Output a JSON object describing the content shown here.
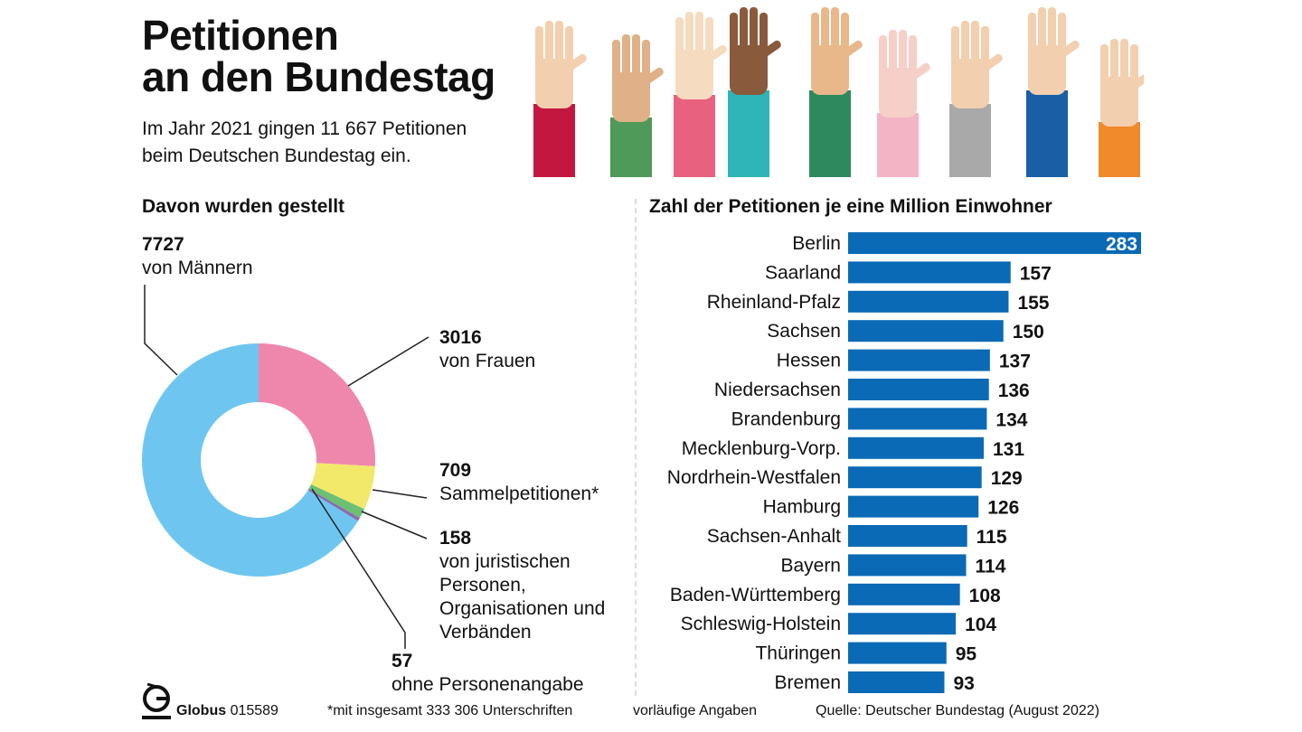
{
  "header": {
    "title_line1": "Petitionen",
    "title_line2": "an den Bundestag",
    "subtitle_line1": "Im Jahr 2021 gingen 11 667 Petitionen",
    "subtitle_line2": "beim Deutschen Bundestag ein."
  },
  "footer": {
    "brand": "Globus",
    "code": "015589",
    "footnote": "*mit insgesamt 333 306 Unterschriften",
    "note": "vorläufige Angaben",
    "source": "Quelle: Deutscher Bundestag (August 2022)"
  },
  "chart_data": [
    {
      "type": "pie",
      "title": "Davon wurden gestellt",
      "slices": [
        {
          "value": 3016,
          "value_label": "3016",
          "label": "von Frauen",
          "color": "#ef87ad"
        },
        {
          "value": 709,
          "value_label": "709",
          "label": "Sammelpetitionen*",
          "color": "#f2e86a"
        },
        {
          "value": 158,
          "value_label": "158",
          "label": "von juristischen Personen, Organisationen und Verbänden",
          "color": "#6cbf73"
        },
        {
          "value": 57,
          "value_label": "57",
          "label": "ohne Personenangabe",
          "color": "#8b6bb0"
        },
        {
          "value": 7727,
          "value_label": "7727",
          "label": "von Männern",
          "color": "#6ec6f0"
        }
      ]
    },
    {
      "type": "bar",
      "orientation": "horizontal",
      "title": "Zahl der Petitionen je eine Million Einwohner",
      "color": "#0a6ab5",
      "categories": [
        "Berlin",
        "Saarland",
        "Rheinland-Pfalz",
        "Sachsen",
        "Hessen",
        "Niedersachsen",
        "Brandenburg",
        "Mecklenburg-Vorp.",
        "Nordrhein-Westfalen",
        "Hamburg",
        "Sachsen-Anhalt",
        "Bayern",
        "Baden-Württemberg",
        "Schleswig-Holstein",
        "Thüringen",
        "Bremen"
      ],
      "values": [
        283,
        157,
        155,
        150,
        137,
        136,
        134,
        131,
        129,
        126,
        115,
        114,
        108,
        104,
        95,
        93
      ]
    }
  ]
}
